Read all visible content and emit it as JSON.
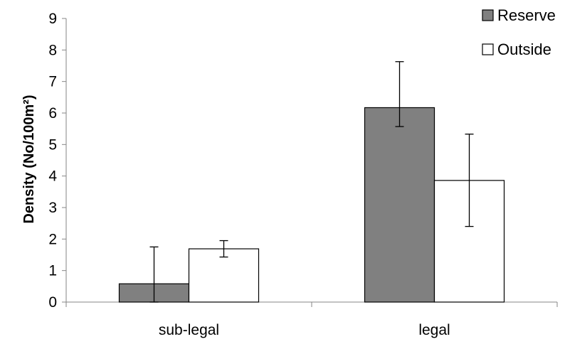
{
  "chart_data": {
    "type": "bar",
    "title": "",
    "xlabel": "",
    "ylabel": "Density (No/100m²)",
    "ylim": [
      0,
      9
    ],
    "yticks": [
      0,
      1,
      2,
      3,
      4,
      5,
      6,
      7,
      8,
      9
    ],
    "categories": [
      "sub-legal",
      "legal"
    ],
    "grid": false,
    "legend_position": "top-right",
    "series": [
      {
        "name": "Reserve",
        "color": "#808080",
        "values": [
          0.58,
          6.17
        ],
        "error_low": [
          0,
          5.57
        ],
        "error_high": [
          1.75,
          7.63
        ]
      },
      {
        "name": "Outside",
        "color": "#ffffff",
        "values": [
          1.69,
          3.86
        ],
        "error_low": [
          1.43,
          2.4
        ],
        "error_high": [
          1.95,
          5.33
        ]
      }
    ]
  }
}
